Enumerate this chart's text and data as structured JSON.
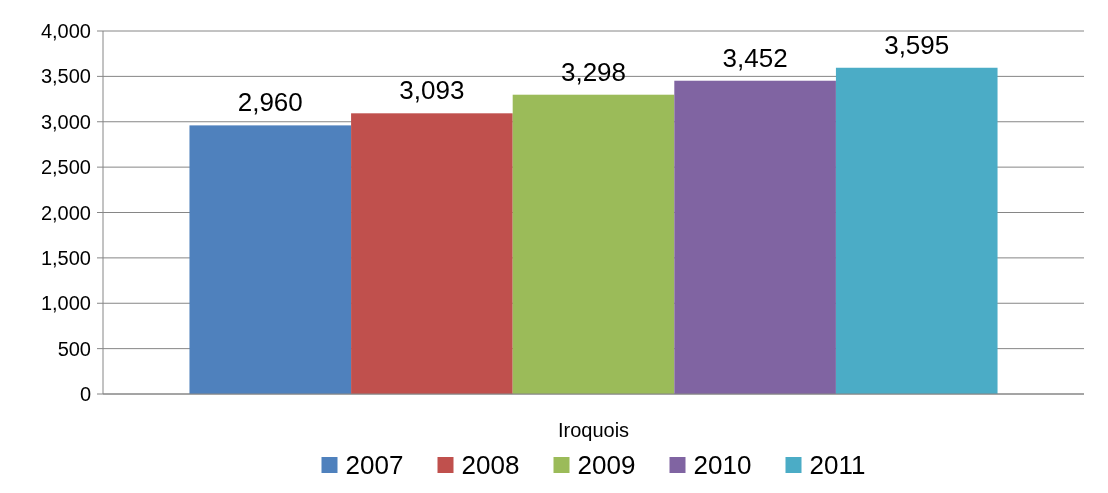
{
  "chart_data": {
    "type": "bar",
    "categories": [
      "Iroquois"
    ],
    "series": [
      {
        "name": "2007",
        "color": "#4f81bd",
        "values": [
          2960
        ],
        "value_labels": [
          "2,960"
        ]
      },
      {
        "name": "2008",
        "color": "#c0504d",
        "values": [
          3093
        ],
        "value_labels": [
          "3,093"
        ]
      },
      {
        "name": "2009",
        "color": "#9bbb59",
        "values": [
          3298
        ],
        "value_labels": [
          "3,298"
        ]
      },
      {
        "name": "2010",
        "color": "#8064a2",
        "values": [
          3452
        ],
        "value_labels": [
          "3,452"
        ]
      },
      {
        "name": "2011",
        "color": "#4bacc6",
        "values": [
          3595
        ],
        "value_labels": [
          "3,595"
        ]
      }
    ],
    "ylim": [
      0,
      4000
    ],
    "yticks": [
      0,
      500,
      {
        "value": 1000,
        "label": "1,000"
      },
      {
        "value": 1500,
        "label": "1,500"
      },
      {
        "value": 2000,
        "label": "2,000"
      },
      {
        "value": 2500,
        "label": "2,500"
      },
      {
        "value": 3000,
        "label": "3,000"
      },
      {
        "value": 3500,
        "label": "3,500"
      },
      {
        "value": 4000,
        "label": "4,000"
      }
    ],
    "grid": "y",
    "legend": "bottom"
  }
}
